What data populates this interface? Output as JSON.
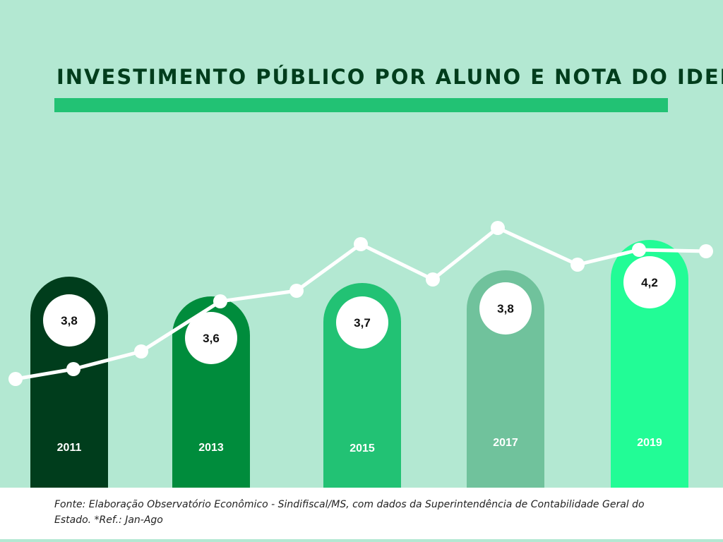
{
  "title": "INVESTIMENTO PÚBLICO POR ALUNO E NOTA DO IDEB",
  "source": "Fonte: Elaboração Observatório Econômico - Sindifiscal/MS, com dados da Superintendência de Contabilidade Geral do Estado. *Ref.: Jan-Ago",
  "chart_data": {
    "type": "bar",
    "categories": [
      "2011",
      "2013",
      "2015",
      "2017",
      "2019"
    ],
    "values": [
      3.8,
      3.6,
      3.7,
      3.8,
      4.2
    ],
    "value_labels": [
      "3,8",
      "3,6",
      "3,7",
      "3,8",
      "4,2"
    ],
    "bar_colors": [
      "#003d1c",
      "#008c3c",
      "#22c274",
      "#70c29c",
      "#22fc96"
    ],
    "line_series": {
      "type": "line",
      "color": "#ffffff",
      "relative_values": [
        23,
        37,
        62,
        133,
        148,
        214,
        164,
        237,
        185,
        206,
        204
      ]
    },
    "grid": false,
    "legend": "none"
  }
}
